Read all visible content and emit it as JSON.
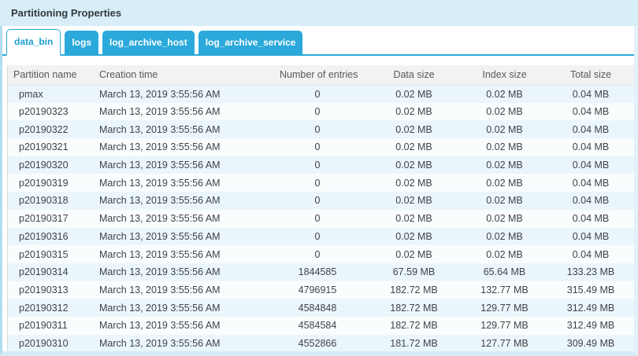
{
  "panel": {
    "title": "Partitioning Properties"
  },
  "tabs": [
    {
      "label": "data_bin",
      "active": true
    },
    {
      "label": "logs",
      "active": false
    },
    {
      "label": "log_archive_host",
      "active": false
    },
    {
      "label": "log_archive_service",
      "active": false
    }
  ],
  "table": {
    "columns": [
      "Partition name",
      "Creation time",
      "Number of entries",
      "Data size",
      "Index size",
      "Total size"
    ],
    "rows": [
      [
        "pmax",
        "March 13, 2019 3:55:56 AM",
        "0",
        "0.02 MB",
        "0.02 MB",
        "0.04 MB"
      ],
      [
        "p20190323",
        "March 13, 2019 3:55:56 AM",
        "0",
        "0.02 MB",
        "0.02 MB",
        "0.04 MB"
      ],
      [
        "p20190322",
        "March 13, 2019 3:55:56 AM",
        "0",
        "0.02 MB",
        "0.02 MB",
        "0.04 MB"
      ],
      [
        "p20190321",
        "March 13, 2019 3:55:56 AM",
        "0",
        "0.02 MB",
        "0.02 MB",
        "0.04 MB"
      ],
      [
        "p20190320",
        "March 13, 2019 3:55:56 AM",
        "0",
        "0.02 MB",
        "0.02 MB",
        "0.04 MB"
      ],
      [
        "p20190319",
        "March 13, 2019 3:55:56 AM",
        "0",
        "0.02 MB",
        "0.02 MB",
        "0.04 MB"
      ],
      [
        "p20190318",
        "March 13, 2019 3:55:56 AM",
        "0",
        "0.02 MB",
        "0.02 MB",
        "0.04 MB"
      ],
      [
        "p20190317",
        "March 13, 2019 3:55:56 AM",
        "0",
        "0.02 MB",
        "0.02 MB",
        "0.04 MB"
      ],
      [
        "p20190316",
        "March 13, 2019 3:55:56 AM",
        "0",
        "0.02 MB",
        "0.02 MB",
        "0.04 MB"
      ],
      [
        "p20190315",
        "March 13, 2019 3:55:56 AM",
        "0",
        "0.02 MB",
        "0.02 MB",
        "0.04 MB"
      ],
      [
        "p20190314",
        "March 13, 2019 3:55:56 AM",
        "1844585",
        "67.59 MB",
        "65.64 MB",
        "133.23 MB"
      ],
      [
        "p20190313",
        "March 13, 2019 3:55:56 AM",
        "4796915",
        "182.72 MB",
        "132.77 MB",
        "315.49 MB"
      ],
      [
        "p20190312",
        "March 13, 2019 3:55:56 AM",
        "4584848",
        "182.72 MB",
        "129.77 MB",
        "312.49 MB"
      ],
      [
        "p20190311",
        "March 13, 2019 3:55:56 AM",
        "4584584",
        "182.72 MB",
        "129.77 MB",
        "312.49 MB"
      ],
      [
        "p20190310",
        "March 13, 2019 3:55:56 AM",
        "4552866",
        "181.72 MB",
        "127.77 MB",
        "309.49 MB"
      ]
    ]
  },
  "colors": {
    "accent_blue": "#2aa9da",
    "titlebar_bg": "#d7edf8",
    "active_tab_text": "#1d9ed3",
    "stripe_blue": "#ebf6fc",
    "stripe_white": "#f9fdfe",
    "header_bg": "#f2f2f2",
    "panel_border": "#b0ddf1"
  }
}
